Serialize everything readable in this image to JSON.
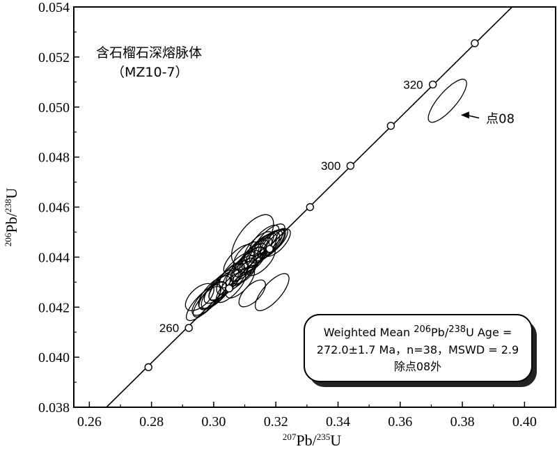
{
  "chart_data": {
    "type": "scatter",
    "subtype": "U-Pb concordia diagram",
    "title": "含石榴石深熔脉体",
    "subtitle": "（MZ10-7）",
    "xlabel": {
      "sup": "207",
      "base": "Pb/",
      "sup2": "235",
      "base2": "U"
    },
    "ylabel": {
      "sup": "206",
      "base": "Pb/",
      "sup2": "238",
      "base2": "U"
    },
    "xlim": [
      0.255,
      0.41
    ],
    "ylim": [
      0.038,
      0.054
    ],
    "xticks": [
      "0.26",
      "0.28",
      "0.30",
      "0.32",
      "0.34",
      "0.36",
      "0.38",
      "0.40"
    ],
    "xtick_values": [
      0.26,
      0.28,
      0.3,
      0.32,
      0.34,
      0.36,
      0.38,
      0.4
    ],
    "yticks": [
      "0.038",
      "0.040",
      "0.042",
      "0.044",
      "0.046",
      "0.048",
      "0.050",
      "0.052",
      "0.054"
    ],
    "ytick_values": [
      0.038,
      0.04,
      0.042,
      0.044,
      0.046,
      0.048,
      0.05,
      0.052,
      0.054
    ],
    "concordia_points": [
      {
        "x": 0.279,
        "y": 0.0396
      },
      {
        "x": 0.292,
        "y": 0.04117,
        "label": "260"
      },
      {
        "x": 0.305,
        "y": 0.04275
      },
      {
        "x": 0.318,
        "y": 0.04433
      },
      {
        "x": 0.331,
        "y": 0.046
      },
      {
        "x": 0.344,
        "y": 0.04765,
        "label": "300"
      },
      {
        "x": 0.357,
        "y": 0.04925
      },
      {
        "x": 0.3705,
        "y": 0.0509,
        "label": "320"
      },
      {
        "x": 0.384,
        "y": 0.05255
      }
    ],
    "concordia_line": [
      [
        0.2655,
        0.038
      ],
      [
        0.396,
        0.054
      ]
    ],
    "ellipses": [
      {
        "cx": 0.2968,
        "cy": 0.04218,
        "rx": 0.0076,
        "ry": 0.00058,
        "angle": 0.052
      },
      {
        "cx": 0.2985,
        "cy": 0.04235,
        "rx": 0.0072,
        "ry": 0.0006,
        "angle": 0.05
      },
      {
        "cx": 0.3002,
        "cy": 0.0426,
        "rx": 0.0068,
        "ry": 0.00062,
        "angle": 0.053
      },
      {
        "cx": 0.3012,
        "cy": 0.04262,
        "rx": 0.007,
        "ry": 0.0006,
        "angle": 0.054
      },
      {
        "cx": 0.2955,
        "cy": 0.0424,
        "rx": 0.0056,
        "ry": 0.00066,
        "angle": 0.046
      },
      {
        "cx": 0.3025,
        "cy": 0.04285,
        "rx": 0.0074,
        "ry": 0.0006,
        "angle": 0.051
      },
      {
        "cx": 0.2978,
        "cy": 0.04222,
        "rx": 0.0062,
        "ry": 0.0005,
        "angle": 0.058
      },
      {
        "cx": 0.3042,
        "cy": 0.04302,
        "rx": 0.0078,
        "ry": 0.0006,
        "angle": 0.052
      },
      {
        "cx": 0.3035,
        "cy": 0.04288,
        "rx": 0.0066,
        "ry": 0.00056,
        "angle": 0.05
      },
      {
        "cx": 0.2998,
        "cy": 0.04245,
        "rx": 0.0058,
        "ry": 0.00057,
        "angle": 0.049
      },
      {
        "cx": 0.306,
        "cy": 0.04318,
        "rx": 0.0068,
        "ry": 0.00066,
        "angle": 0.055
      },
      {
        "cx": 0.3056,
        "cy": 0.0428,
        "rx": 0.0064,
        "ry": 0.00054,
        "angle": 0.053
      },
      {
        "cx": 0.3075,
        "cy": 0.0435,
        "rx": 0.0077,
        "ry": 0.0006,
        "angle": 0.052
      },
      {
        "cx": 0.3082,
        "cy": 0.04336,
        "rx": 0.0074,
        "ry": 0.00062,
        "angle": 0.054
      },
      {
        "cx": 0.3096,
        "cy": 0.04354,
        "rx": 0.0076,
        "ry": 0.00064,
        "angle": 0.052
      },
      {
        "cx": 0.3108,
        "cy": 0.04372,
        "rx": 0.0072,
        "ry": 0.00056,
        "angle": 0.051
      },
      {
        "cx": 0.3117,
        "cy": 0.04388,
        "rx": 0.007,
        "ry": 0.00058,
        "angle": 0.053
      },
      {
        "cx": 0.3128,
        "cy": 0.04402,
        "rx": 0.0068,
        "ry": 0.0006,
        "angle": 0.053
      },
      {
        "cx": 0.3138,
        "cy": 0.04415,
        "rx": 0.0066,
        "ry": 0.00058,
        "angle": 0.05
      },
      {
        "cx": 0.3148,
        "cy": 0.04425,
        "rx": 0.0074,
        "ry": 0.00062,
        "angle": 0.052
      },
      {
        "cx": 0.3158,
        "cy": 0.04433,
        "rx": 0.0072,
        "ry": 0.0006,
        "angle": 0.051
      },
      {
        "cx": 0.3168,
        "cy": 0.04442,
        "rx": 0.007,
        "ry": 0.00058,
        "angle": 0.05
      },
      {
        "cx": 0.3178,
        "cy": 0.04448,
        "rx": 0.0066,
        "ry": 0.00056,
        "angle": 0.051
      },
      {
        "cx": 0.3186,
        "cy": 0.04454,
        "rx": 0.006,
        "ry": 0.00054,
        "angle": 0.052
      },
      {
        "cx": 0.3194,
        "cy": 0.0446,
        "rx": 0.0058,
        "ry": 0.0005,
        "angle": 0.05
      },
      {
        "cx": 0.3205,
        "cy": 0.04458,
        "rx": 0.0056,
        "ry": 0.00052,
        "angle": 0.054
      },
      {
        "cx": 0.3125,
        "cy": 0.0439,
        "rx": 0.0052,
        "ry": 0.0006,
        "angle": 0.049
      },
      {
        "cx": 0.3108,
        "cy": 0.04405,
        "rx": 0.0056,
        "ry": 0.00064,
        "angle": 0.052
      },
      {
        "cx": 0.3145,
        "cy": 0.04442,
        "rx": 0.0062,
        "ry": 0.0006,
        "angle": 0.051
      },
      {
        "cx": 0.3162,
        "cy": 0.04466,
        "rx": 0.0064,
        "ry": 0.00058,
        "angle": 0.053
      },
      {
        "cx": 0.318,
        "cy": 0.04472,
        "rx": 0.0064,
        "ry": 0.00058,
        "angle": 0.05
      },
      {
        "cx": 0.3098,
        "cy": 0.04345,
        "rx": 0.0052,
        "ry": 0.00058,
        "angle": 0.051
      },
      {
        "cx": 0.3125,
        "cy": 0.0447,
        "rx": 0.0095,
        "ry": 0.001,
        "angle": 0.066
      },
      {
        "cx": 0.3124,
        "cy": 0.04255,
        "rx": 0.0055,
        "ry": 0.00058,
        "angle": 0.051
      },
      {
        "cx": 0.3085,
        "cy": 0.04298,
        "rx": 0.0062,
        "ry": 0.0006,
        "angle": 0.055
      },
      {
        "cx": 0.3078,
        "cy": 0.04392,
        "rx": 0.006,
        "ry": 0.00056,
        "angle": 0.051
      },
      {
        "cx": 0.3152,
        "cy": 0.04385,
        "rx": 0.006,
        "ry": 0.0006,
        "angle": 0.052
      },
      {
        "cx": 0.3188,
        "cy": 0.0426,
        "rx": 0.0075,
        "ry": 0.00066,
        "angle": 0.057
      },
      {
        "cx": 0.3752,
        "cy": 0.05025,
        "rx": 0.0088,
        "ry": 0.00065,
        "angle": 0.058
      }
    ],
    "annotations": {
      "arrow_label": "点08",
      "arrow_from": {
        "x": 0.3854,
        "y": 0.04956
      },
      "arrow_to": {
        "x": 0.3795,
        "y": 0.04968
      }
    },
    "result_box": {
      "line1_prefix": "Weighted Mean ",
      "line1_sup1": "206",
      "line1_mid": "Pb/",
      "line1_sup2": "238",
      "line1_suffix": "U Age =",
      "line2": "272.0±1.7 Ma，n=38，MSWD = 2.9",
      "line3": "除点08外"
    }
  }
}
